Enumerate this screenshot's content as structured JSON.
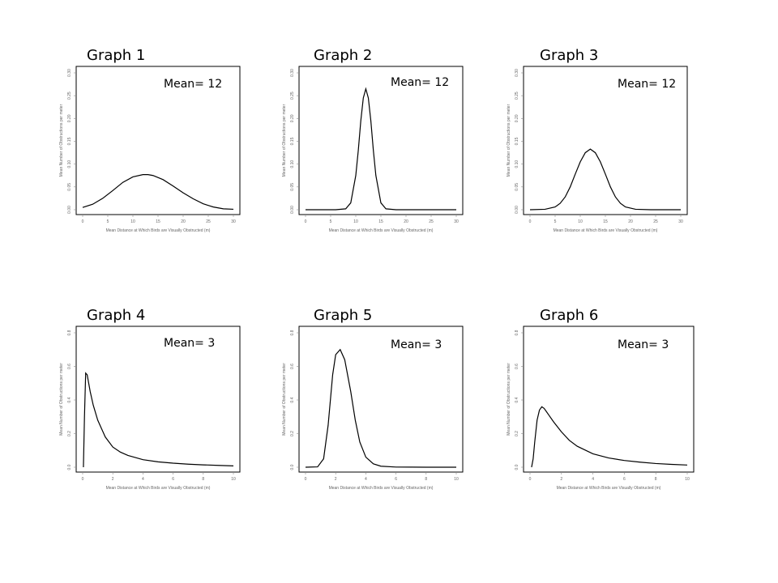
{
  "chart_data": [
    {
      "type": "line",
      "title": "Graph 1",
      "annotation": "Mean= 12",
      "xlabel": "Mean Distance at Which Birds are Visually Obstructed",
      "xunit": "(m)",
      "ylabel": "Mean Number of Obstructions per meter",
      "xlim": [
        0,
        30
      ],
      "ylim": [
        0,
        0.3
      ],
      "xticks": [
        "0",
        "5",
        "10",
        "15",
        "20",
        "25",
        "30"
      ],
      "yticks": [
        "0.00",
        "0.05",
        "0.10",
        "0.15",
        "0.20",
        "0.25",
        "0.30"
      ],
      "series": [
        {
          "x": [
            0,
            2,
            4,
            6,
            8,
            10,
            12,
            13,
            14,
            16,
            18,
            20,
            22,
            24,
            26,
            28,
            30
          ],
          "y": [
            0.005,
            0.012,
            0.025,
            0.042,
            0.06,
            0.072,
            0.077,
            0.077,
            0.075,
            0.066,
            0.052,
            0.037,
            0.024,
            0.013,
            0.006,
            0.002,
            0.001
          ]
        }
      ]
    },
    {
      "type": "line",
      "title": "Graph 2",
      "annotation": "Mean= 12",
      "xlabel": "Mean Distance at Which Birds are Visually Obstructed",
      "xunit": "(m)",
      "ylabel": "Mean Number of Obstructions per meter",
      "xlim": [
        0,
        30
      ],
      "ylim": [
        0,
        0.3
      ],
      "xticks": [
        "0",
        "5",
        "10",
        "15",
        "20",
        "25",
        "30"
      ],
      "yticks": [
        "0.00",
        "0.05",
        "0.10",
        "0.15",
        "0.20",
        "0.25",
        "0.30"
      ],
      "series": [
        {
          "x": [
            0,
            6,
            8,
            9,
            10,
            10.5,
            11,
            11.5,
            12,
            12.5,
            13,
            13.5,
            14,
            15,
            16,
            18,
            24,
            30
          ],
          "y": [
            0,
            0,
            0.002,
            0.015,
            0.075,
            0.13,
            0.195,
            0.245,
            0.265,
            0.245,
            0.195,
            0.13,
            0.075,
            0.015,
            0.002,
            0,
            0,
            0
          ]
        }
      ]
    },
    {
      "type": "line",
      "title": "Graph 3",
      "annotation": "Mean= 12",
      "xlabel": "Mean Distance at Which Birds are Visually Obstructed",
      "xunit": "(m)",
      "ylabel": "Mean Number of Obstructions per meter",
      "xlim": [
        0,
        30
      ],
      "ylim": [
        0,
        0.3
      ],
      "xticks": [
        "0",
        "5",
        "10",
        "15",
        "20",
        "25",
        "30"
      ],
      "yticks": [
        "0.00",
        "0.05",
        "0.10",
        "0.15",
        "0.20",
        "0.25",
        "0.30"
      ],
      "series": [
        {
          "x": [
            0,
            3,
            5,
            6,
            7,
            8,
            9,
            10,
            11,
            12,
            13,
            14,
            15,
            16,
            17,
            18,
            19,
            21,
            24,
            30
          ],
          "y": [
            0,
            0.001,
            0.006,
            0.014,
            0.028,
            0.05,
            0.078,
            0.105,
            0.125,
            0.133,
            0.125,
            0.105,
            0.078,
            0.05,
            0.028,
            0.014,
            0.006,
            0.001,
            0,
            0
          ]
        }
      ]
    },
    {
      "type": "line",
      "title": "Graph 4",
      "annotation": "Mean= 3",
      "xlabel": "Mean Distance at Which Birds are Visually Obstructed",
      "xunit": "(m)",
      "ylabel": "Mean Number of Obstructions per meter",
      "xlim": [
        0,
        10
      ],
      "ylim": [
        0,
        0.8
      ],
      "xticks": [
        "0",
        "2",
        "4",
        "6",
        "8",
        "10"
      ],
      "yticks": [
        "0.0",
        "0.2",
        "0.4",
        "0.6",
        "0.8"
      ],
      "series": [
        {
          "x": [
            0.05,
            0.12,
            0.2,
            0.3,
            0.4,
            0.5,
            0.7,
            1.0,
            1.5,
            2.0,
            2.5,
            3.0,
            4.0,
            5.0,
            6.0,
            7.0,
            8.0,
            9.0,
            10.0
          ],
          "y": [
            0.0,
            0.3,
            0.56,
            0.55,
            0.5,
            0.45,
            0.37,
            0.28,
            0.18,
            0.12,
            0.09,
            0.07,
            0.045,
            0.032,
            0.024,
            0.018,
            0.014,
            0.011,
            0.008
          ]
        }
      ]
    },
    {
      "type": "line",
      "title": "Graph 5",
      "annotation": "Mean= 3",
      "xlabel": "Mean Distance at Which Birds are Visually Obstructed",
      "xunit": "(m)",
      "ylabel": "Mean Number of Obstructions per meter",
      "xlim": [
        0,
        10
      ],
      "ylim": [
        0,
        0.8
      ],
      "xticks": [
        "0",
        "2",
        "4",
        "6",
        "8",
        "10"
      ],
      "yticks": [
        "0.0",
        "0.2",
        "0.4",
        "0.6",
        "0.8"
      ],
      "series": [
        {
          "x": [
            0,
            0.8,
            1.2,
            1.5,
            1.8,
            2.0,
            2.3,
            2.6,
            3.0,
            3.3,
            3.6,
            4.0,
            4.5,
            5.0,
            6.0,
            8.0,
            10.0
          ],
          "y": [
            0,
            0.002,
            0.05,
            0.25,
            0.55,
            0.67,
            0.7,
            0.64,
            0.45,
            0.28,
            0.15,
            0.06,
            0.02,
            0.006,
            0.001,
            0,
            0
          ]
        }
      ]
    },
    {
      "type": "line",
      "title": "Graph 6",
      "annotation": "Mean= 3",
      "xlabel": "Mean Distance at Which Birds are Visually Obstructed",
      "xunit": "(m)",
      "ylabel": "Mean Number of Obstructions per meter",
      "xlim": [
        0,
        10
      ],
      "ylim": [
        0,
        0.8
      ],
      "xticks": [
        "0",
        "2",
        "4",
        "6",
        "8",
        "10"
      ],
      "yticks": [
        "0.0",
        "0.2",
        "0.4",
        "0.6",
        "0.8"
      ],
      "series": [
        {
          "x": [
            0.1,
            0.2,
            0.3,
            0.45,
            0.6,
            0.75,
            0.9,
            1.2,
            1.5,
            2.0,
            2.5,
            3.0,
            4.0,
            5.0,
            6.0,
            7.0,
            8.0,
            9.0,
            10.0
          ],
          "y": [
            0.0,
            0.05,
            0.15,
            0.28,
            0.34,
            0.36,
            0.35,
            0.31,
            0.27,
            0.21,
            0.16,
            0.125,
            0.08,
            0.055,
            0.04,
            0.03,
            0.022,
            0.017,
            0.013
          ]
        }
      ]
    }
  ]
}
